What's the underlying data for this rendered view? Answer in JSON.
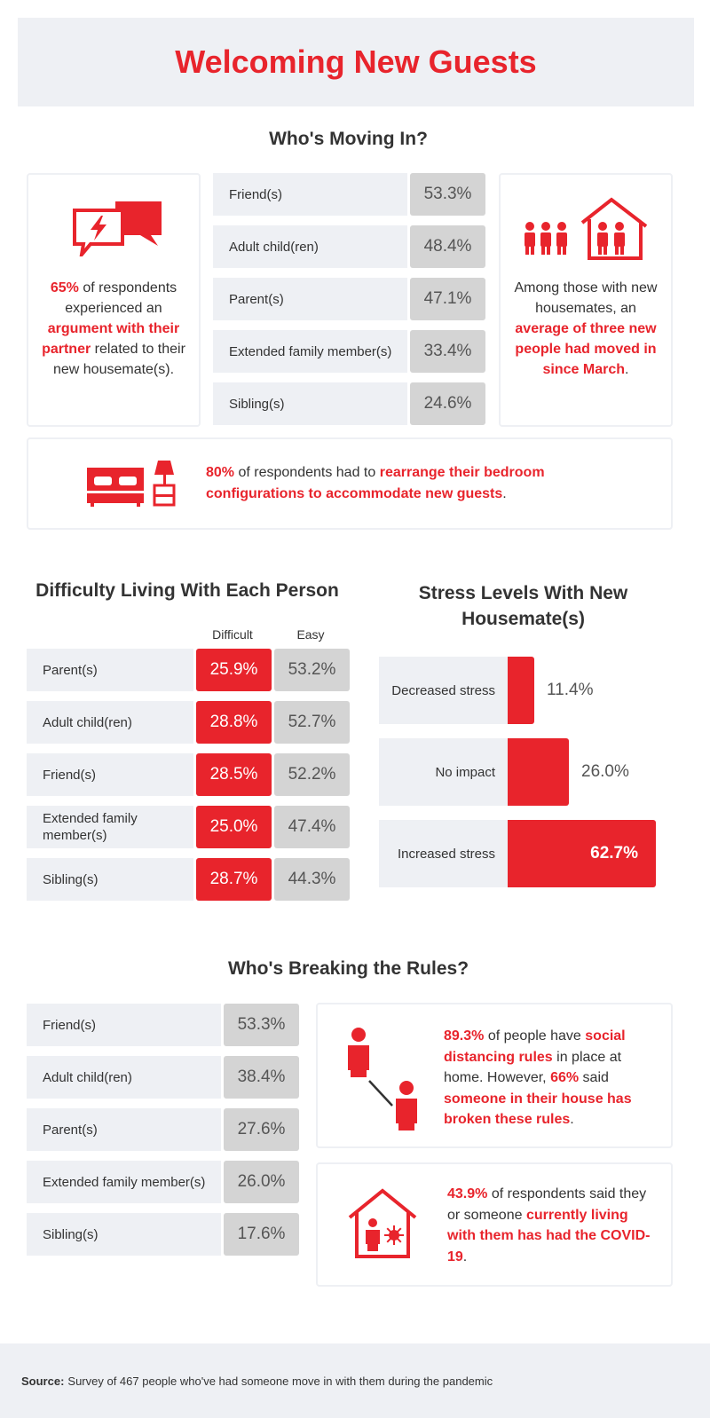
{
  "title": "Welcoming New Guests",
  "colors": {
    "accent": "#e8242c",
    "panel": "#eef0f4",
    "gray_box": "#d4d4d4"
  },
  "moving_in": {
    "title": "Who's Moving In?",
    "argument": {
      "pct": "65%",
      "text1": "of respondents experienced an",
      "highlight": "argument with their partner",
      "text2": "related to their new housemate(s).",
      "icon": "speech-bubbles-lightning-icon"
    },
    "housemates": {
      "text1": "Among those with new housemates, an",
      "highlight": "average of three new people had moved in since March",
      "text2": ".",
      "icon": "people-house-icon"
    },
    "bedroom": {
      "pct": "80%",
      "text1": "of respondents had to",
      "highlight": "rearrange their bedroom configurations to accommodate new guests",
      "text2": ".",
      "icon": "bed-lamp-icon"
    }
  },
  "difficulty": {
    "title": "Difficulty Living With Each Person",
    "col_difficult": "Difficult",
    "col_easy": "Easy"
  },
  "stress": {
    "title_line1": "Stress Levels With New",
    "title_line2": "Housemate(s)"
  },
  "rules": {
    "title": "Who's Breaking the Rules?",
    "distancing": {
      "pct": "89.3%",
      "text1": "of people have",
      "highlight1": "social distancing rules",
      "text2": "in place at home. However,",
      "pct2": "66%",
      "text3": "said",
      "highlight2": "someone in their house has broken these rules",
      "text4": ".",
      "icon": "social-distance-people-icon"
    },
    "covid": {
      "pct": "43.9%",
      "text1": "of respondents said they or someone",
      "highlight": "currently living with them has had the COVID-19",
      "text2": ".",
      "icon": "house-virus-icon"
    }
  },
  "footer": {
    "label": "Source:",
    "text": "Survey of 467 people who've had someone move in with them during the pandemic"
  },
  "chart_data": [
    {
      "type": "table",
      "title": "Who's Moving In?",
      "categories": [
        "Friend(s)",
        "Adult child(ren)",
        "Parent(s)",
        "Extended family member(s)",
        "Sibling(s)"
      ],
      "values": [
        "53.3%",
        "48.4%",
        "47.1%",
        "33.4%",
        "24.6%"
      ]
    },
    {
      "type": "table",
      "title": "Difficulty Living With Each Person",
      "categories": [
        "Parent(s)",
        "Adult child(ren)",
        "Friend(s)",
        "Extended family member(s)",
        "Sibling(s)"
      ],
      "series": [
        {
          "name": "Difficult",
          "values": [
            "25.9%",
            "28.8%",
            "28.5%",
            "25.0%",
            "28.7%"
          ]
        },
        {
          "name": "Easy",
          "values": [
            "53.2%",
            "52.7%",
            "52.2%",
            "47.4%",
            "44.3%"
          ]
        }
      ]
    },
    {
      "type": "bar",
      "title": "Stress Levels With New Housemate(s)",
      "orientation": "horizontal",
      "categories": [
        "Decreased stress",
        "No impact",
        "Increased stress"
      ],
      "values": [
        11.4,
        26.0,
        62.7
      ],
      "labels": [
        "11.4%",
        "26.0%",
        "62.7%"
      ],
      "xlim": [
        0,
        62.7
      ]
    },
    {
      "type": "table",
      "title": "Who's Breaking the Rules?",
      "categories": [
        "Friend(s)",
        "Adult child(ren)",
        "Parent(s)",
        "Extended family member(s)",
        "Sibling(s)"
      ],
      "values": [
        "53.3%",
        "38.4%",
        "27.6%",
        "26.0%",
        "17.6%"
      ]
    }
  ]
}
